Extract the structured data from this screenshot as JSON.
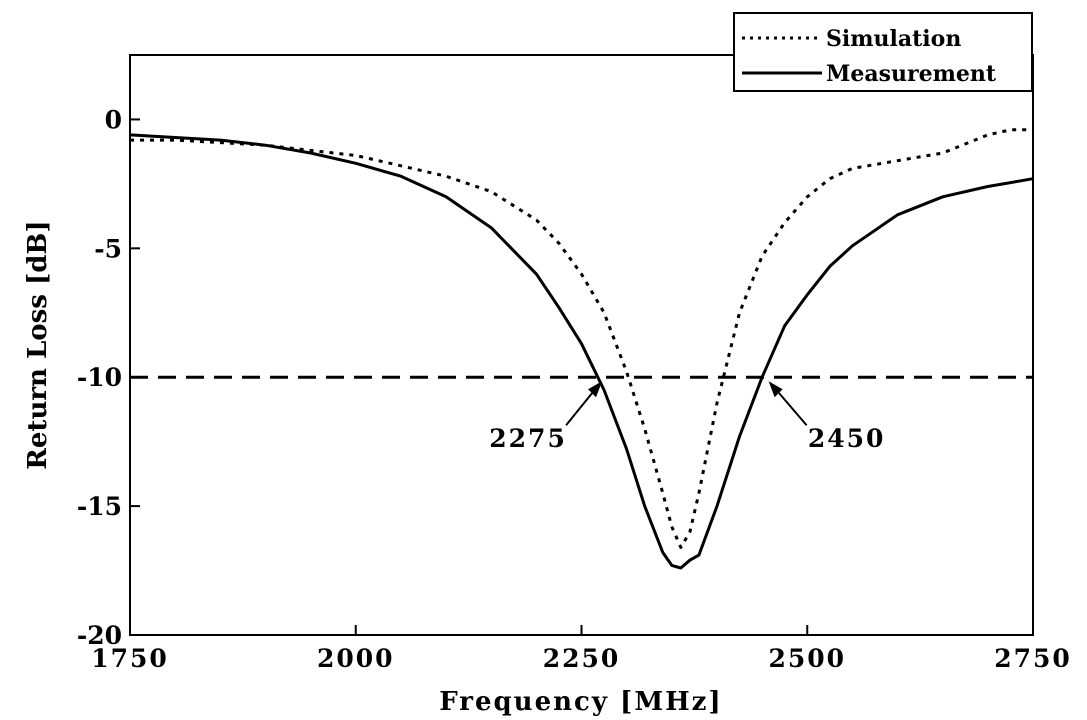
{
  "chart_data": {
    "type": "line",
    "title": "",
    "xlabel": "Frequency [MHz]",
    "ylabel": "Return Loss [dB]",
    "xlim": [
      1750,
      2750
    ],
    "ylim": [
      -20,
      2.5
    ],
    "xticks": [
      1750,
      2000,
      2250,
      2500,
      2750
    ],
    "yticks": [
      0,
      -5,
      -10,
      -15,
      -20
    ],
    "grid": false,
    "legend_position": "top-right",
    "series": [
      {
        "name": "Simulation",
        "style": "dotted",
        "color": "#000000",
        "x": [
          1750,
          1800,
          1850,
          1900,
          1950,
          2000,
          2050,
          2100,
          2150,
          2200,
          2225,
          2250,
          2275,
          2300,
          2320,
          2340,
          2350,
          2360,
          2370,
          2380,
          2400,
          2425,
          2450,
          2475,
          2500,
          2525,
          2550,
          2600,
          2650,
          2700,
          2725,
          2750
        ],
        "y": [
          -0.8,
          -0.8,
          -0.9,
          -1.0,
          -1.2,
          -1.4,
          -1.8,
          -2.2,
          -2.8,
          -3.9,
          -4.8,
          -6.0,
          -7.5,
          -9.8,
          -12.0,
          -14.5,
          -15.8,
          -16.6,
          -16.0,
          -14.5,
          -11.0,
          -7.5,
          -5.3,
          -4.0,
          -3.0,
          -2.3,
          -1.9,
          -1.6,
          -1.3,
          -0.6,
          -0.4,
          -0.4
        ]
      },
      {
        "name": "Measurement",
        "style": "solid",
        "color": "#000000",
        "x": [
          1750,
          1800,
          1850,
          1900,
          1950,
          2000,
          2050,
          2100,
          2150,
          2200,
          2225,
          2250,
          2275,
          2300,
          2320,
          2340,
          2350,
          2360,
          2370,
          2380,
          2400,
          2425,
          2450,
          2475,
          2500,
          2525,
          2550,
          2575,
          2600,
          2650,
          2700,
          2750
        ],
        "y": [
          -0.6,
          -0.7,
          -0.8,
          -1.0,
          -1.3,
          -1.7,
          -2.2,
          -3.0,
          -4.2,
          -6.0,
          -7.3,
          -8.7,
          -10.5,
          -12.8,
          -15.0,
          -16.8,
          -17.3,
          -17.4,
          -17.1,
          -16.9,
          -15.0,
          -12.3,
          -10.0,
          -8.0,
          -6.8,
          -5.7,
          -4.9,
          -4.3,
          -3.7,
          -3.0,
          -2.6,
          -2.3
        ]
      }
    ],
    "reference_line": {
      "y": -10,
      "style": "dashed"
    },
    "annotations": [
      {
        "text": "2275",
        "x": 2275,
        "y": -10
      },
      {
        "text": "2450",
        "x": 2455,
        "y": -10
      }
    ]
  }
}
